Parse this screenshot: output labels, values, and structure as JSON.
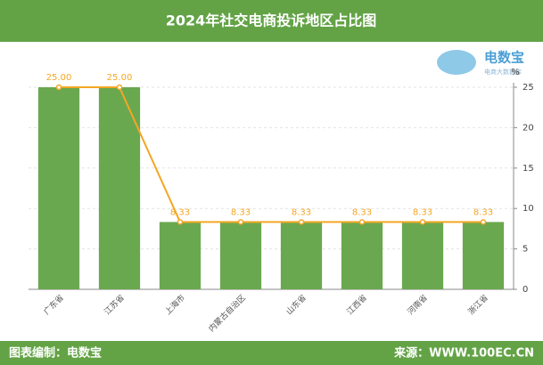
{
  "chart_data": {
    "type": "bar",
    "title": "2024年社交电商投诉地区占比图",
    "logo": {
      "name": "电数宝",
      "tagline": "电商大数据库"
    },
    "y_unit": "%",
    "categories": [
      "广东省",
      "江苏省",
      "上海市",
      "内蒙古自治区",
      "山东省",
      "江西省",
      "河南省",
      "浙江省"
    ],
    "series": [
      {
        "type": "bar",
        "color": "#6aa84f",
        "values": [
          25,
          25,
          8.33,
          8.33,
          8.33,
          8.33,
          8.33,
          8.33
        ]
      },
      {
        "type": "line",
        "color": "#f5a623",
        "values": [
          25,
          25,
          8.33,
          8.33,
          8.33,
          8.33,
          8.33,
          8.33
        ],
        "value_labels": [
          "25.00",
          "25.00",
          "8.33",
          "8.33",
          "8.33",
          "8.33",
          "8.33",
          "8.33"
        ]
      }
    ],
    "ylim": [
      0,
      25
    ],
    "yticks": [
      0,
      5,
      10,
      15,
      20,
      25
    ],
    "y_axis_side": "right",
    "grid": true,
    "footer": {
      "left": "图表编制：电数宝",
      "right": "来源：WWW.100EC.CN"
    }
  }
}
